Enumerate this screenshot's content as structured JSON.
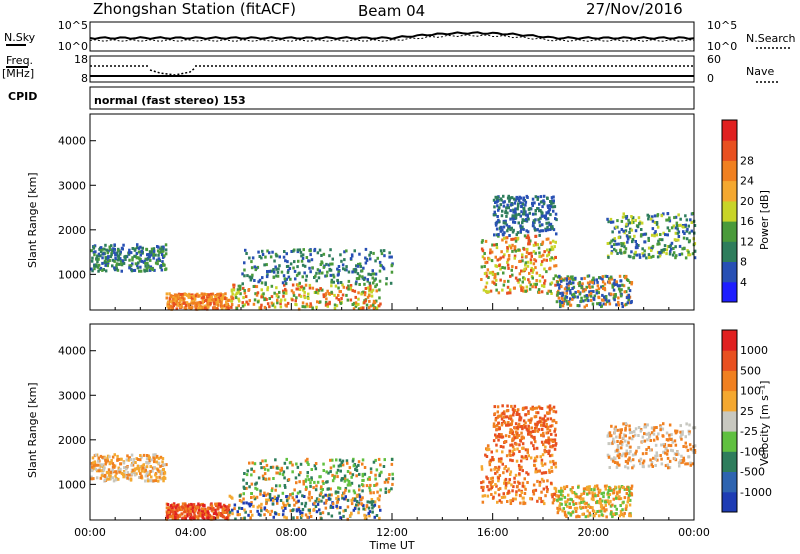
{
  "header": {
    "station": "Zhongshan Station (fitACF)",
    "beam": "Beam 04",
    "date": "27/Nov/2016"
  },
  "strip_panels": {
    "sky": {
      "left_label": "N.Sky",
      "right_label": "N.Search",
      "left_ticks": [
        "10^5",
        "10^0"
      ],
      "right_ticks": [
        "10^5",
        "10^0"
      ]
    },
    "freq": {
      "left_label_1": "Freq.",
      "left_label_2": "[MHz]",
      "right_label": "Nave",
      "left_ticks": [
        "18",
        "8"
      ],
      "right_ticks": [
        "60",
        "0"
      ]
    },
    "cpid": {
      "left_label": "CPID",
      "text": "normal (fast stereo) 153"
    }
  },
  "chart_data": [
    {
      "type": "heatmap",
      "title": "",
      "ylabel": "Slant Range [km]",
      "xlabel": "",
      "ylim": [
        200,
        4600
      ],
      "y_ticks": [
        "1000",
        "2000",
        "3000",
        "4000"
      ],
      "colorbar": {
        "label": "Power [dB]",
        "ticks": [
          "4",
          "8",
          "12",
          "16",
          "20",
          "24",
          "28"
        ],
        "colors": [
          "#1e1eff",
          "#2850b4",
          "#2e7d5c",
          "#4a9a3a",
          "#c8d428",
          "#f4a830",
          "#f08020",
          "#e85020",
          "#e02020"
        ]
      },
      "scatter_regions": [
        {
          "t": [
            0.0,
            3.0
          ],
          "r": [
            1100,
            1700
          ],
          "colors": [
            "#2850b4",
            "#2e7d5c",
            "#4a9a3a"
          ]
        },
        {
          "t": [
            3.0,
            5.5
          ],
          "r": [
            250,
            600
          ],
          "colors": [
            "#e85020",
            "#f08020",
            "#f4a830"
          ]
        },
        {
          "t": [
            5.5,
            11.5
          ],
          "r": [
            250,
            800
          ],
          "colors": [
            "#f08020",
            "#e85020",
            "#4a9a3a",
            "#c8d428"
          ]
        },
        {
          "t": [
            6.0,
            12.0
          ],
          "r": [
            800,
            1600
          ],
          "colors": [
            "#2850b4",
            "#4a9a3a",
            "#2e7d5c"
          ]
        },
        {
          "t": [
            15.5,
            18.5
          ],
          "r": [
            600,
            1900
          ],
          "colors": [
            "#e85020",
            "#f08020",
            "#c8d428",
            "#4a9a3a"
          ]
        },
        {
          "t": [
            16.0,
            18.5
          ],
          "r": [
            1900,
            2800
          ],
          "colors": [
            "#2850b4",
            "#2e7d5c"
          ]
        },
        {
          "t": [
            20.5,
            24.0
          ],
          "r": [
            1400,
            2400
          ],
          "colors": [
            "#2850b4",
            "#4a9a3a",
            "#c8d428",
            "#2e7d5c"
          ]
        },
        {
          "t": [
            18.5,
            21.5
          ],
          "r": [
            300,
            1000
          ],
          "colors": [
            "#2850b4",
            "#4a9a3a",
            "#f08020"
          ]
        }
      ]
    },
    {
      "type": "heatmap",
      "title": "",
      "ylabel": "Slant Range [km]",
      "xlabel": "Time UT",
      "ylim": [
        200,
        4600
      ],
      "y_ticks": [
        "1000",
        "2000",
        "3000",
        "4000"
      ],
      "x_ticks": [
        "00:00",
        "04:00",
        "08:00",
        "12:00",
        "16:00",
        "20:00",
        "00:00"
      ],
      "colorbar": {
        "label": "Velocity [m s⁻¹]",
        "ticks": [
          "1000",
          "500",
          "100",
          "25",
          "-25",
          "-100",
          "-500",
          "-1000"
        ],
        "colors": [
          "#1e3cb4",
          "#2e64b0",
          "#2e7d5c",
          "#60c040",
          "#c8c8c0",
          "#f4a830",
          "#f08020",
          "#e85020",
          "#e02020"
        ]
      },
      "scatter_regions": [
        {
          "t": [
            0.0,
            3.0
          ],
          "r": [
            1100,
            1700
          ],
          "colors": [
            "#c8c8c0",
            "#f4a830",
            "#f08020"
          ]
        },
        {
          "t": [
            3.0,
            5.5
          ],
          "r": [
            250,
            600
          ],
          "colors": [
            "#e85020",
            "#e02020",
            "#f08020"
          ]
        },
        {
          "t": [
            5.5,
            11.5
          ],
          "r": [
            250,
            800
          ],
          "colors": [
            "#f08020",
            "#2e7d5c",
            "#1e3cb4",
            "#f4a830"
          ]
        },
        {
          "t": [
            6.0,
            12.0
          ],
          "r": [
            800,
            1600
          ],
          "colors": [
            "#f08020",
            "#2e7d5c",
            "#60c040"
          ]
        },
        {
          "t": [
            15.5,
            18.5
          ],
          "r": [
            600,
            1900
          ],
          "colors": [
            "#f08020",
            "#f4a830",
            "#e85020"
          ]
        },
        {
          "t": [
            16.0,
            18.5
          ],
          "r": [
            1900,
            2800
          ],
          "colors": [
            "#f08020",
            "#e85020"
          ]
        },
        {
          "t": [
            20.5,
            24.0
          ],
          "r": [
            1400,
            2400
          ],
          "colors": [
            "#c8c8c0",
            "#f08020"
          ]
        },
        {
          "t": [
            18.5,
            21.5
          ],
          "r": [
            300,
            1000
          ],
          "colors": [
            "#f08020",
            "#60c040",
            "#f4a830"
          ]
        }
      ]
    }
  ]
}
